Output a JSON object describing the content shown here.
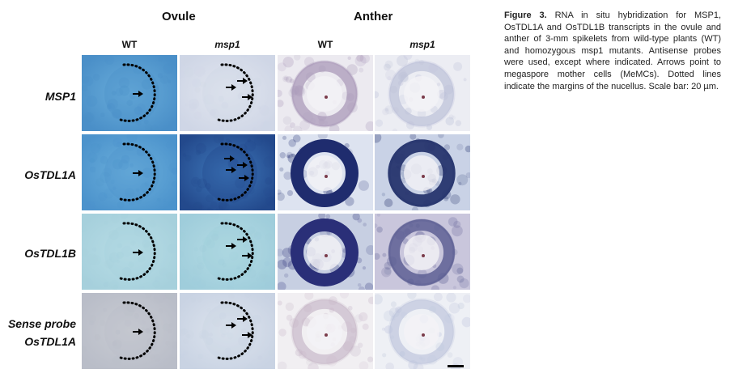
{
  "figure": {
    "groups": [
      {
        "title": "Ovule"
      },
      {
        "title": "Anther"
      }
    ],
    "columns": [
      "WT",
      "msp1",
      "WT",
      "msp1"
    ],
    "rows": [
      {
        "label_lines": [
          "MSP1"
        ]
      },
      {
        "label_lines": [
          "OsTDL1A"
        ]
      },
      {
        "label_lines": [
          "OsTDL1B"
        ]
      },
      {
        "label_lines": [
          "Sense probe",
          "OsTDL1A"
        ]
      }
    ],
    "panels": [
      {
        "row": 0,
        "col": 0,
        "kind": "ovule",
        "bg": "#6aaedb",
        "stain": "#4a8fc8",
        "arrows": 1
      },
      {
        "row": 0,
        "col": 1,
        "kind": "ovule",
        "bg": "#e2e6ef",
        "stain": "#cfd6e6",
        "arrows": 3
      },
      {
        "row": 0,
        "col": 2,
        "kind": "anther",
        "bg": "#eceaf0",
        "ring": "#a898b8",
        "intensity": 0.45
      },
      {
        "row": 0,
        "col": 3,
        "kind": "anther",
        "bg": "#ecedf3",
        "ring": "#b9bdd6",
        "intensity": 0.3
      },
      {
        "row": 1,
        "col": 0,
        "kind": "ovule",
        "bg": "#6cb0dc",
        "stain": "#4c93cc",
        "arrows": 1
      },
      {
        "row": 1,
        "col": 1,
        "kind": "ovule",
        "bg": "#3f79bb",
        "stain": "#23498c",
        "arrows": 4
      },
      {
        "row": 1,
        "col": 2,
        "kind": "anther",
        "bg": "#dde3f0",
        "ring": "#1f2c6e",
        "intensity": 1.0
      },
      {
        "row": 1,
        "col": 3,
        "kind": "anther",
        "bg": "#c9d2e6",
        "ring": "#27356e",
        "intensity": 0.9
      },
      {
        "row": 2,
        "col": 0,
        "kind": "ovule",
        "bg": "#b8dde6",
        "stain": "#a6d0dc",
        "arrows": 1
      },
      {
        "row": 2,
        "col": 1,
        "kind": "ovule",
        "bg": "#b4dbe4",
        "stain": "#9fcddb",
        "arrows": 3
      },
      {
        "row": 2,
        "col": 2,
        "kind": "anther",
        "bg": "#c7cfe2",
        "ring": "#2a2f78",
        "intensity": 1.0
      },
      {
        "row": 2,
        "col": 3,
        "kind": "anther",
        "bg": "#c9c6dc",
        "ring": "#5a5c92",
        "intensity": 0.65
      },
      {
        "row": 3,
        "col": 0,
        "kind": "ovule",
        "bg": "#c9ccd3",
        "stain": "#b9bdc8",
        "arrows": 1
      },
      {
        "row": 3,
        "col": 1,
        "kind": "ovule",
        "bg": "#dde4ee",
        "stain": "#c9d3e3",
        "arrows": 3
      },
      {
        "row": 3,
        "col": 2,
        "kind": "anther",
        "bg": "#f1eff2",
        "ring": "#c4b3c6",
        "intensity": 0.3
      },
      {
        "row": 3,
        "col": 3,
        "kind": "anther",
        "bg": "#eef0f5",
        "ring": "#b8c0da",
        "intensity": 0.25
      }
    ],
    "caption": {
      "label": "Figure 3.",
      "text": "RNA in situ hybridization for MSP1, OsTDL1A and OsTDL1B transcripts in the ovule and anther of 3-mm spikelets from wild-type plants (WT) and homozygous msp1 mutants. Antisense probes were used, except where indicated. Arrows point to megaspore mother cells (MeMCs). Dotted lines indicate the margins of the nucellus. Scale bar: 20 µm."
    }
  }
}
